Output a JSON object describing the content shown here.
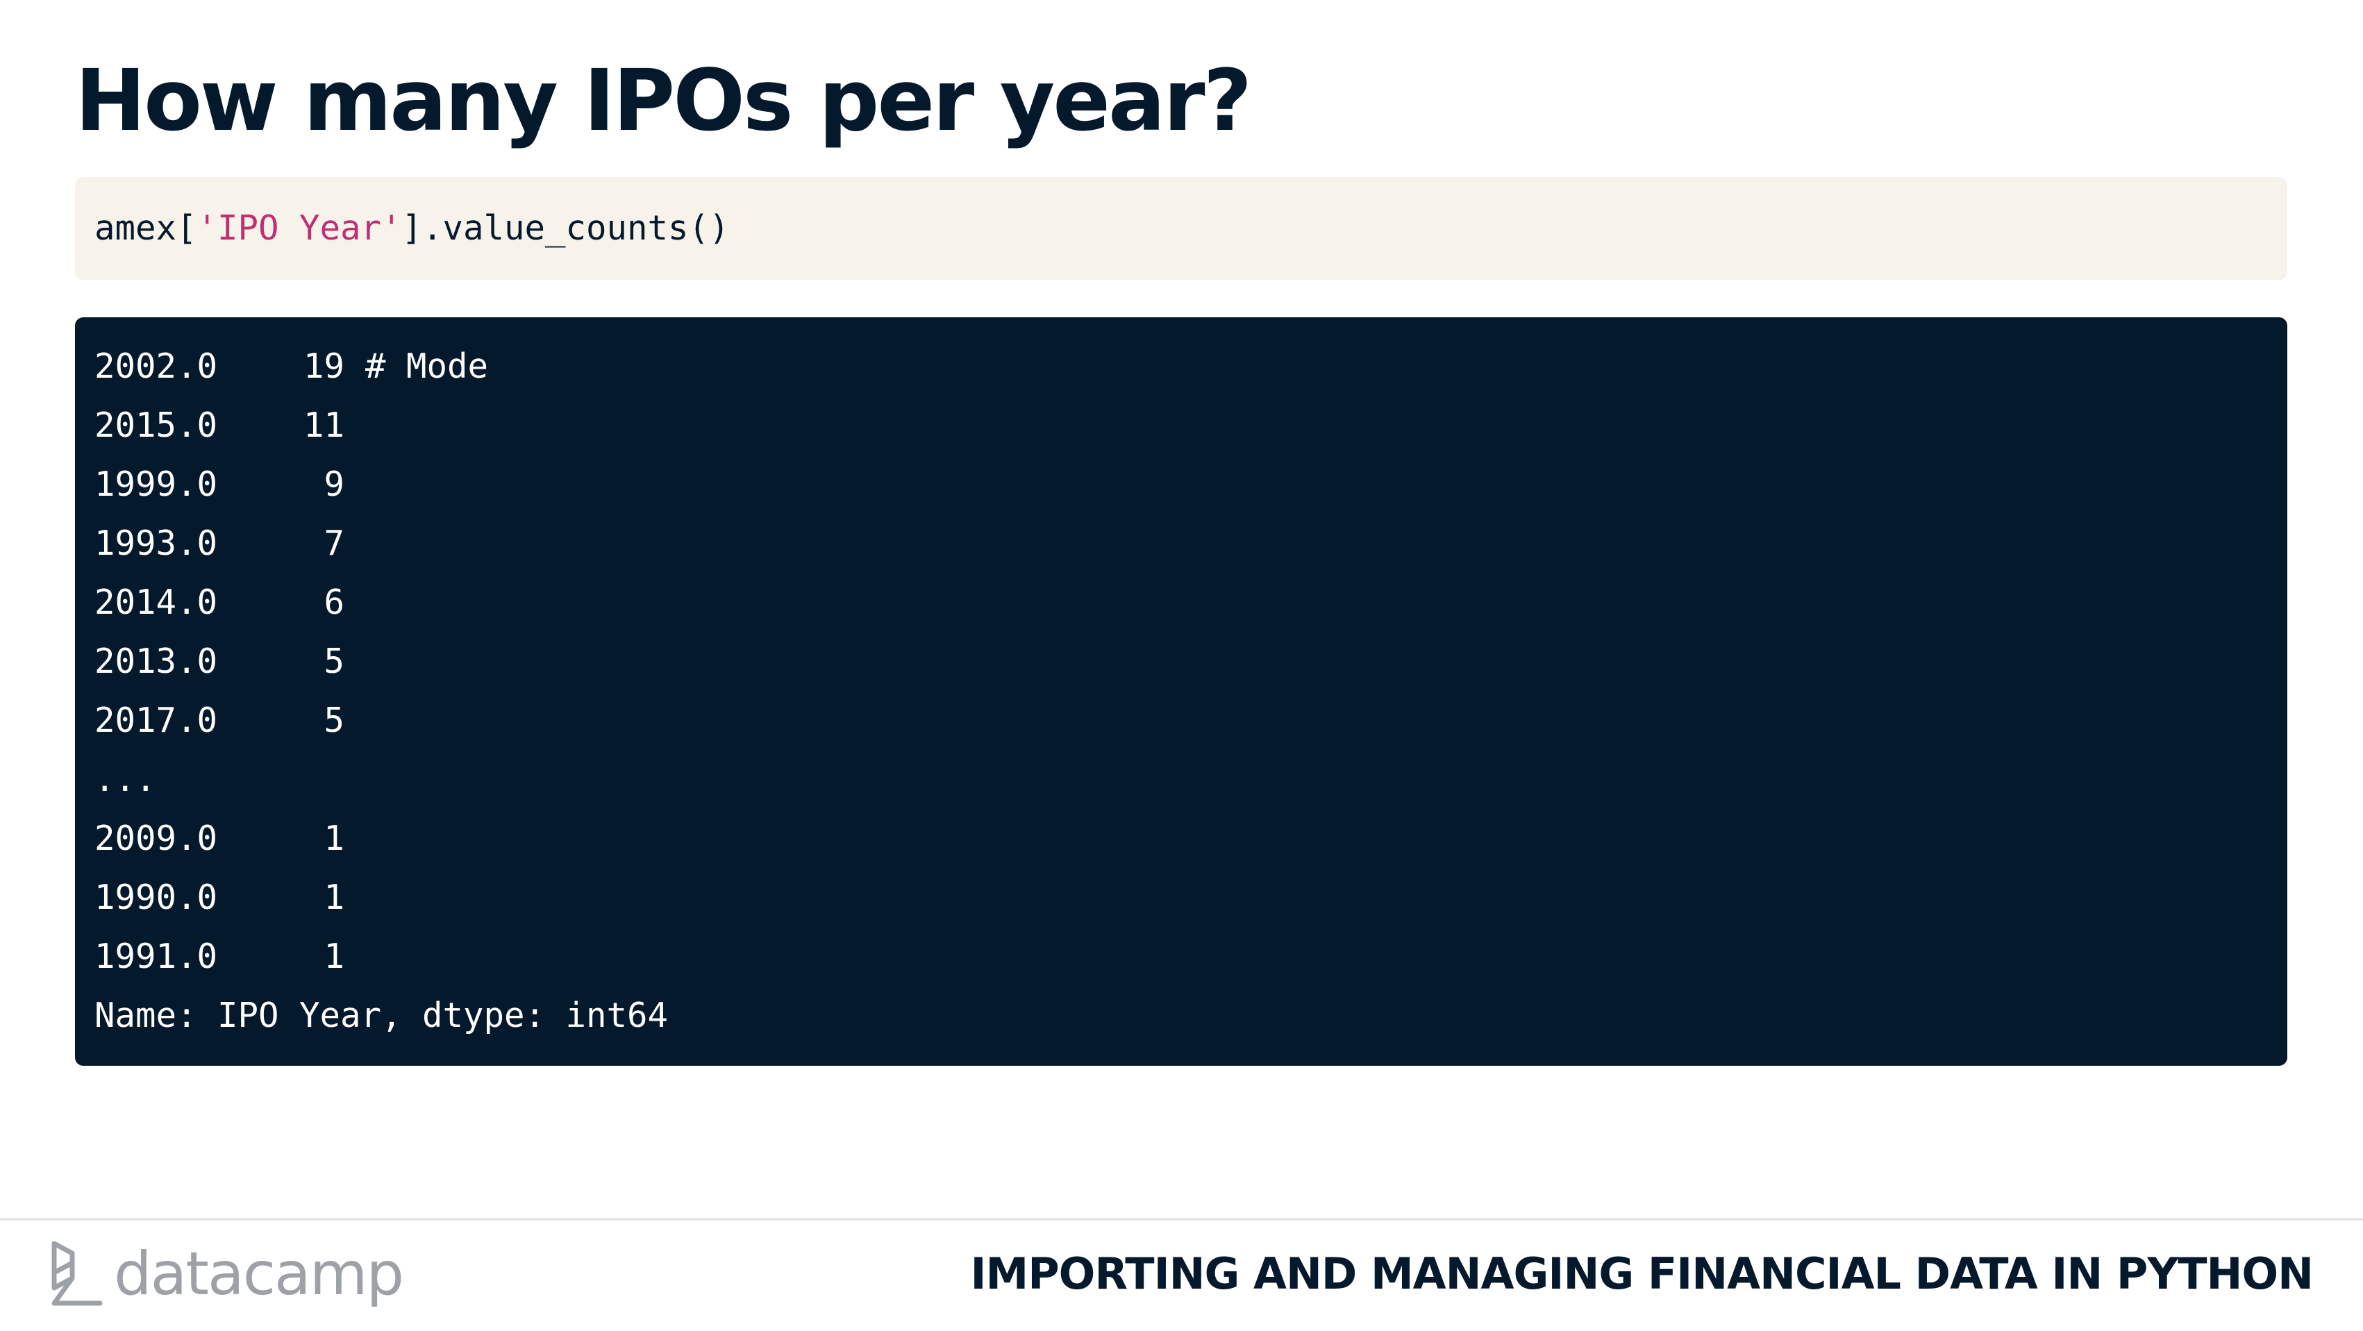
{
  "slide": {
    "title": "How many IPOs per year?"
  },
  "code_input": {
    "prefix": "amex[",
    "string_literal": "'IPO Year'",
    "suffix": "].value_counts()"
  },
  "code_output": {
    "rows": [
      {
        "year": "2002.0",
        "count": "19",
        "comment": "# Mode"
      },
      {
        "year": "2015.0",
        "count": "11"
      },
      {
        "year": "1999.0",
        "count": "9"
      },
      {
        "year": "1993.0",
        "count": "7"
      },
      {
        "year": "2014.0",
        "count": "6"
      },
      {
        "year": "2013.0",
        "count": "5"
      },
      {
        "year": "2017.0",
        "count": "5"
      },
      {
        "year": "..."
      },
      {
        "year": "2009.0",
        "count": "1"
      },
      {
        "year": "1990.0",
        "count": "1"
      },
      {
        "year": "1991.0",
        "count": "1"
      }
    ],
    "summary": "Name: IPO Year, dtype: int64"
  },
  "footer": {
    "logo_icon": "datacamp-logo-icon",
    "logo_text": "datacamp",
    "course_title": "IMPORTING AND MANAGING FINANCIAL DATA IN PYTHON"
  },
  "colors": {
    "title_text": "#05192d",
    "code_input_bg": "#f7f3eb",
    "code_string": "#bf3072",
    "code_output_bg": "#05192d",
    "code_output_text": "#ffffff",
    "logo_gray": "#9ea2a6"
  }
}
